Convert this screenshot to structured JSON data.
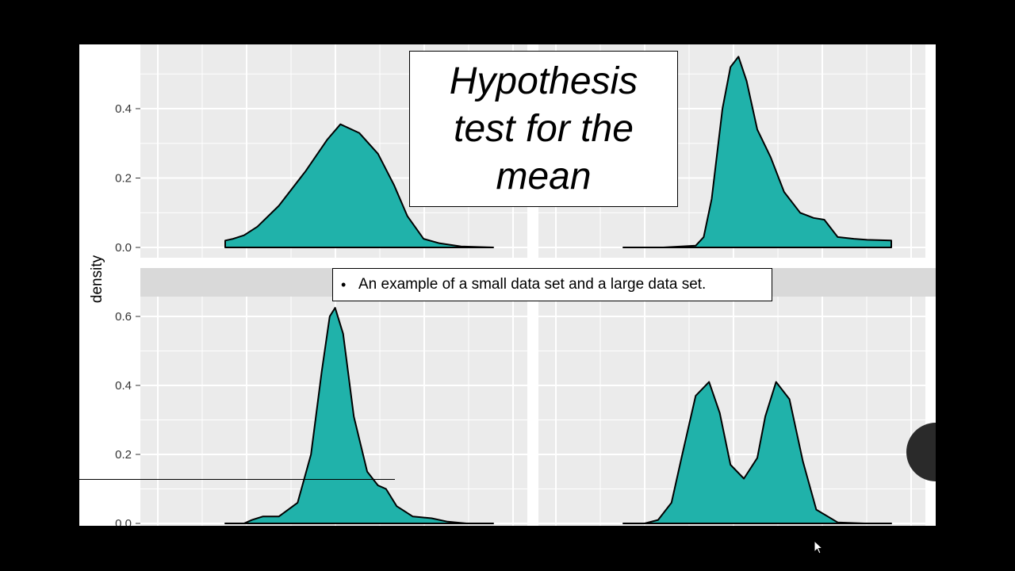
{
  "slide": {
    "title": "Hypothesis test for the mean",
    "bullet_symbol": "•",
    "bullet_text": "An example of a small data set and a large data set."
  },
  "colors": {
    "fill": "#20b2aa",
    "panel_bg": "#ebebeb",
    "strip_bg": "#d9d9d9",
    "grid": "#ffffff",
    "outline": "#000000"
  },
  "chart_data": {
    "type": "area",
    "ylabel": "density",
    "grid": true,
    "panels": [
      {
        "position": "top-left",
        "ylim": [
          0,
          0.5
        ],
        "yticks": [
          "0.0",
          "0.2",
          "0.4"
        ],
        "x": [
          0,
          0.03,
          0.07,
          0.12,
          0.2,
          0.3,
          0.38,
          0.43,
          0.5,
          0.57,
          0.63,
          0.68,
          0.74,
          0.8,
          0.88,
          1
        ],
        "values": [
          0.02,
          0.025,
          0.035,
          0.06,
          0.12,
          0.22,
          0.31,
          0.355,
          0.33,
          0.27,
          0.18,
          0.09,
          0.025,
          0.012,
          0.003,
          0
        ]
      },
      {
        "position": "top-right",
        "ylim": [
          0,
          0.5
        ],
        "yticks": [],
        "x": [
          0,
          0.15,
          0.27,
          0.3,
          0.33,
          0.37,
          0.4,
          0.43,
          0.46,
          0.5,
          0.55,
          0.6,
          0.66,
          0.71,
          0.75,
          0.8,
          0.86,
          0.91,
          1
        ],
        "values": [
          0,
          0,
          0.005,
          0.03,
          0.14,
          0.4,
          0.52,
          0.55,
          0.48,
          0.34,
          0.26,
          0.16,
          0.1,
          0.085,
          0.08,
          0.03,
          0.025,
          0.022,
          0.02
        ]
      },
      {
        "position": "bottom-left",
        "ylim": [
          0,
          0.65
        ],
        "yticks": [
          "0.0",
          "0.2",
          "0.4",
          "0.6"
        ],
        "x": [
          0,
          0.07,
          0.1,
          0.14,
          0.2,
          0.27,
          0.32,
          0.36,
          0.39,
          0.41,
          0.44,
          0.48,
          0.53,
          0.57,
          0.6,
          0.64,
          0.7,
          0.77,
          0.83,
          0.9,
          1
        ],
        "values": [
          0,
          0,
          0.01,
          0.02,
          0.02,
          0.06,
          0.2,
          0.44,
          0.6,
          0.625,
          0.55,
          0.31,
          0.15,
          0.11,
          0.1,
          0.05,
          0.02,
          0.015,
          0.005,
          0,
          0
        ]
      },
      {
        "position": "bottom-right",
        "ylim": [
          0,
          0.65
        ],
        "yticks": [],
        "x": [
          0,
          0.08,
          0.13,
          0.18,
          0.22,
          0.27,
          0.32,
          0.36,
          0.4,
          0.45,
          0.5,
          0.53,
          0.57,
          0.62,
          0.67,
          0.72,
          0.8,
          0.9,
          1
        ],
        "values": [
          0,
          0,
          0.01,
          0.06,
          0.2,
          0.37,
          0.41,
          0.32,
          0.17,
          0.13,
          0.19,
          0.31,
          0.41,
          0.36,
          0.18,
          0.04,
          0.003,
          0,
          0
        ]
      }
    ]
  }
}
